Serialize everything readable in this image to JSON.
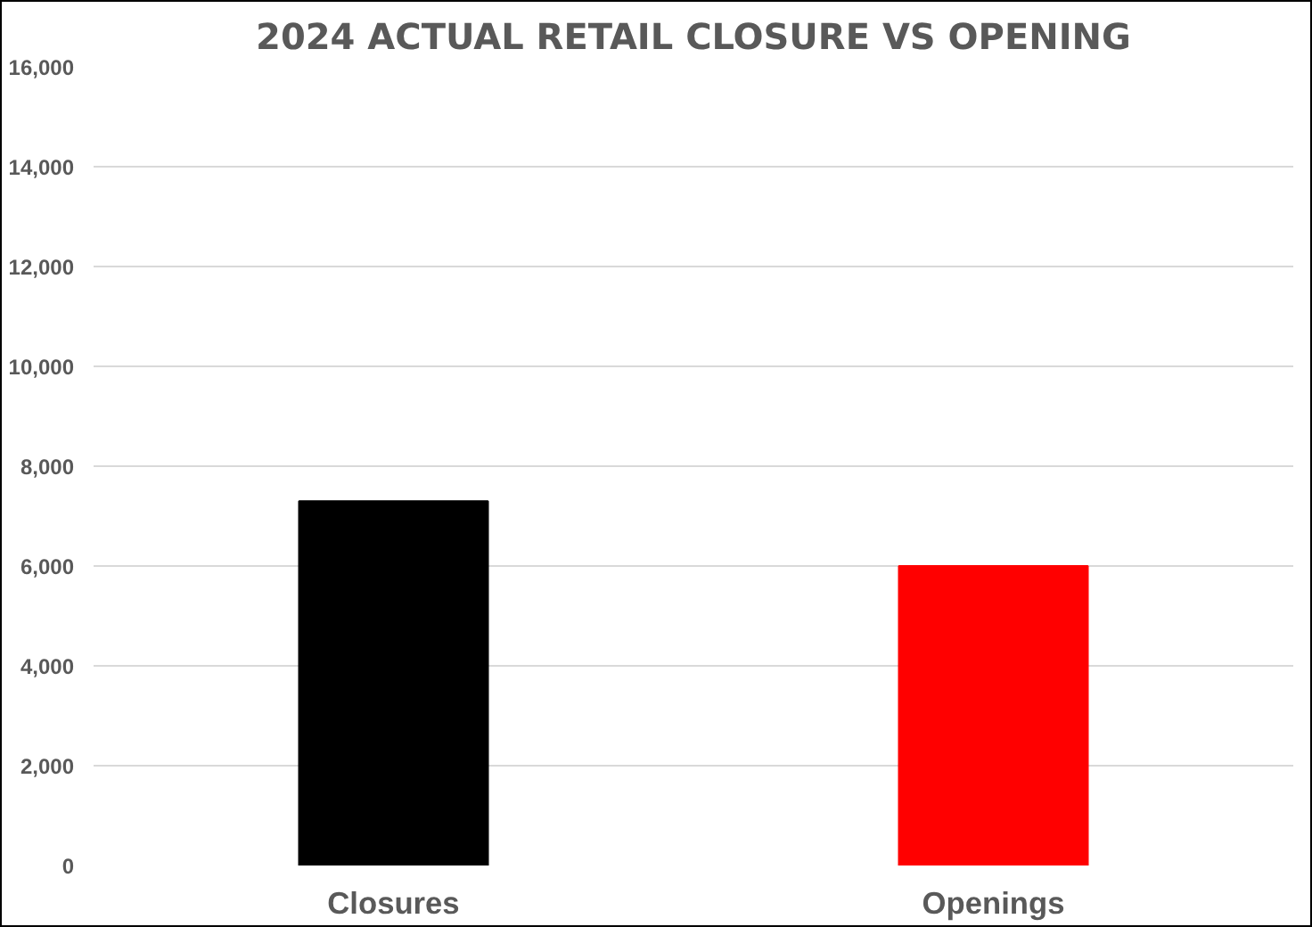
{
  "chart_data": {
    "type": "bar",
    "title": "2024 ACTUAL RETAIL CLOSURE VS OPENING",
    "categories": [
      "Closures",
      "Openings"
    ],
    "values": [
      7300,
      6000
    ],
    "colors": [
      "#000000",
      "#ff0000"
    ],
    "ylim": [
      0,
      16000
    ],
    "yticks": [
      {
        "value": 0,
        "label": "0"
      },
      {
        "value": 2000,
        "label": "2,000"
      },
      {
        "value": 4000,
        "label": "4,000"
      },
      {
        "value": 6000,
        "label": "6,000"
      },
      {
        "value": 8000,
        "label": "8,000"
      },
      {
        "value": 10000,
        "label": "10,000"
      },
      {
        "value": 12000,
        "label": "12,000"
      },
      {
        "value": 14000,
        "label": "14,000"
      },
      {
        "value": 16000,
        "label": "16,000"
      }
    ],
    "grid": "y"
  }
}
